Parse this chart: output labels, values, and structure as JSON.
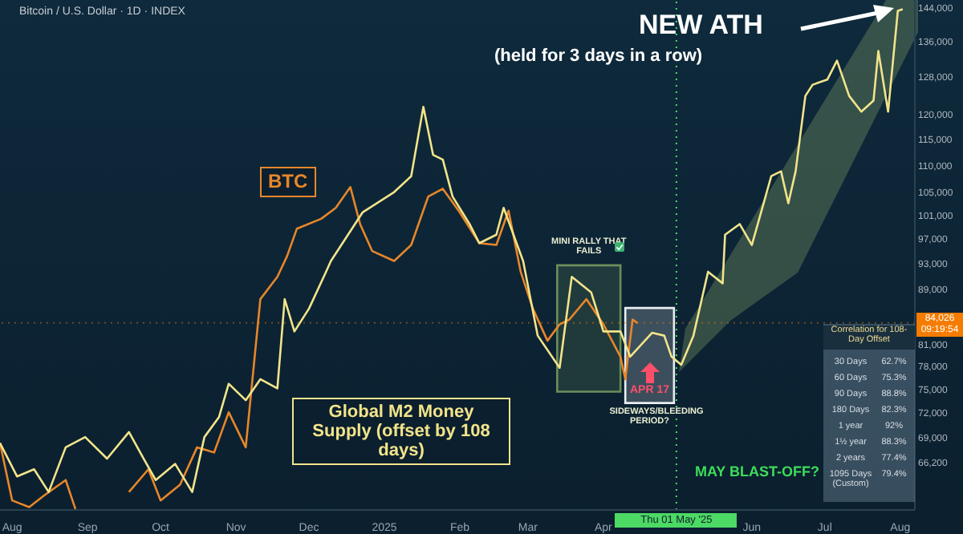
{
  "chart_data": {
    "type": "line",
    "title": "Bitcoin / U.S. Dollar · 1D · INDEX",
    "series": [
      {
        "name": "BTC",
        "color": "#e8862a",
        "x": [
          "2024-07-27",
          "2024-08-01",
          "2024-08-08",
          "2024-08-14",
          "2024-08-23",
          "2024-08-27",
          "2024-09-01",
          "2024-09-18",
          "2024-09-26",
          "2024-10-01",
          "2024-10-09",
          "2024-10-16",
          "2024-10-23",
          "2024-10-29",
          "2024-11-05",
          "2024-11-11",
          "2024-11-18",
          "2024-11-22",
          "2024-11-26",
          "2024-12-06",
          "2024-12-12",
          "2024-12-18",
          "2024-12-22",
          "2024-12-27",
          "2025-01-05",
          "2025-01-12",
          "2025-01-19",
          "2025-01-25",
          "2025-02-01",
          "2025-02-09",
          "2025-02-16",
          "2025-02-21",
          "2025-02-26",
          "2025-03-03",
          "2025-03-09",
          "2025-03-14",
          "2025-03-18",
          "2025-03-25",
          "2025-04-01",
          "2025-04-08",
          "2025-04-10",
          "2025-04-13",
          "2025-04-15"
        ],
        "values": [
          68400,
          62000,
          61300,
          62500,
          64200,
          61100,
          null,
          62900,
          65400,
          62000,
          63700,
          67900,
          67300,
          72100,
          67900,
          87500,
          90900,
          94200,
          98700,
          100400,
          102300,
          106000,
          99500,
          95000,
          93400,
          96000,
          104300,
          105700,
          101500,
          96300,
          96000,
          101800,
          91700,
          86100,
          81500,
          83800,
          84500,
          87500,
          83800,
          79300,
          76300,
          84500,
          84000
        ]
      },
      {
        "name": "Global M2 Money Supply (offset by 108 days)",
        "color": "#f2e48a",
        "x": [
          "2024-07-27",
          "2024-08-03",
          "2024-08-10",
          "2024-08-16",
          "2024-08-23",
          "2024-08-31",
          "2024-09-09",
          "2024-09-18",
          "2024-09-24",
          "2024-09-29",
          "2024-10-07",
          "2024-10-14",
          "2024-10-19",
          "2024-10-25",
          "2024-10-29",
          "2024-11-05",
          "2024-11-11",
          "2024-11-18",
          "2024-11-21",
          "2024-11-25",
          "2024-12-01",
          "2024-12-08",
          "2024-12-10",
          "2024-12-23",
          "2025-01-05",
          "2025-01-12",
          "2025-01-17",
          "2025-01-21",
          "2025-01-25",
          "2025-01-29",
          "2025-02-05",
          "2025-02-09",
          "2025-02-16",
          "2025-02-19",
          "2025-02-27",
          "2025-03-05",
          "2025-03-14",
          "2025-03-19",
          "2025-03-27",
          "2025-04-01",
          "2025-04-08",
          "2025-04-12",
          "2025-04-21",
          "2025-04-26",
          "2025-04-29",
          "2025-05-03",
          "2025-05-08",
          "2025-05-14",
          "2025-05-20",
          "2025-05-21",
          "2025-05-27",
          "2025-06-01",
          "2025-06-09",
          "2025-06-13",
          "2025-06-16",
          "2025-06-19",
          "2025-06-23",
          "2025-06-26",
          "2025-07-02",
          "2025-07-06",
          "2025-07-11",
          "2025-07-16",
          "2025-07-21",
          "2025-07-23",
          "2025-07-27",
          "2025-07-31",
          "2025-08-02"
        ],
        "values": [
          68400,
          64600,
          65400,
          62900,
          67900,
          69100,
          66600,
          69700,
          66600,
          64200,
          66000,
          62900,
          69100,
          71500,
          75700,
          73600,
          76300,
          75100,
          87500,
          82800,
          86100,
          91700,
          93400,
          101500,
          105100,
          108000,
          121600,
          112000,
          111100,
          104300,
          99500,
          96300,
          97700,
          102300,
          93400,
          82200,
          77800,
          90900,
          88500,
          82800,
          82800,
          79300,
          82600,
          82200,
          79300,
          78200,
          82200,
          91700,
          89900,
          97700,
          99500,
          96000,
          108000,
          108900,
          103100,
          108900,
          123900,
          126300,
          127400,
          131600,
          123900,
          120600,
          122900,
          133800,
          120600,
          143300,
          143700
        ]
      }
    ],
    "xlim": [
      "2024-07-27",
      "2025-08-07"
    ],
    "xticks": [
      {
        "value": "2024-08-01",
        "label": "Aug"
      },
      {
        "value": "2024-09-01",
        "label": "Sep"
      },
      {
        "value": "2024-10-01",
        "label": "Oct"
      },
      {
        "value": "2024-11-01",
        "label": "Nov"
      },
      {
        "value": "2024-12-01",
        "label": "Dec"
      },
      {
        "value": "2025-01-01",
        "label": "2025"
      },
      {
        "value": "2025-02-01",
        "label": "Feb"
      },
      {
        "value": "2025-03-01",
        "label": "Mar"
      },
      {
        "value": "2025-04-01",
        "label": "Apr"
      },
      {
        "value": "2025-06-01",
        "label": "Jun"
      },
      {
        "value": "2025-07-01",
        "label": "Jul"
      },
      {
        "value": "2025-08-01",
        "label": "Aug"
      }
    ],
    "ylim": [
      61000,
      146000
    ],
    "yticks": [
      {
        "value": 66200,
        "label": "66,200"
      },
      {
        "value": 69000,
        "label": "69,000"
      },
      {
        "value": 72000,
        "label": "72,000"
      },
      {
        "value": 75000,
        "label": "75,000"
      },
      {
        "value": 78000,
        "label": "78,000"
      },
      {
        "value": 81000,
        "label": "81,000"
      },
      {
        "value": 89000,
        "label": "89,000"
      },
      {
        "value": 93000,
        "label": "93,000"
      },
      {
        "value": 97000,
        "label": "97,000"
      },
      {
        "value": 101000,
        "label": "101,000"
      },
      {
        "value": 105000,
        "label": "105,000"
      },
      {
        "value": 110000,
        "label": "110,000"
      },
      {
        "value": 115000,
        "label": "115,000"
      },
      {
        "value": 120000,
        "label": "120,000"
      },
      {
        "value": 128000,
        "label": "128,000"
      },
      {
        "value": 136000,
        "label": "136,000"
      },
      {
        "value": 144000,
        "label": "144,000"
      }
    ],
    "log": true,
    "ref_lines": [
      {
        "axis": "x",
        "value": "2025-05-01",
        "label": "Thu 01 May '25",
        "color": "#4cd964",
        "line_style": "dotted"
      },
      {
        "axis": "y",
        "value": 84026,
        "label": "84,026",
        "color": "#f57c00",
        "line_style": "dotted"
      }
    ],
    "bands": [
      {
        "axis": "x",
        "from": "2025-03-13",
        "to": "2025-04-08",
        "label": "MINI RALLY THAT FAILS",
        "color": "#6b8f5a"
      },
      {
        "axis": "x",
        "from": "2025-04-10",
        "to": "2025-04-30",
        "label": "SIDEWAYS/BLEEDING PERIOD?",
        "color": "#e8eef2"
      }
    ],
    "annotations": [
      "NEW ATH",
      "(held for 3 days in a row)",
      "APR 17",
      "MAY BLAST-OFF?",
      "Correlation for 108-Day Offset",
      "30 Days",
      "62.7%",
      "60 Days",
      "75.3%",
      "90 Days",
      "88.8%",
      "180 Days",
      "82.3%",
      "1 year",
      "92%",
      "1½ year",
      "88.3%",
      "2 years",
      "77.4%",
      "1095 Days (Custom)",
      "79.4%",
      "09:19:54"
    ]
  }
}
